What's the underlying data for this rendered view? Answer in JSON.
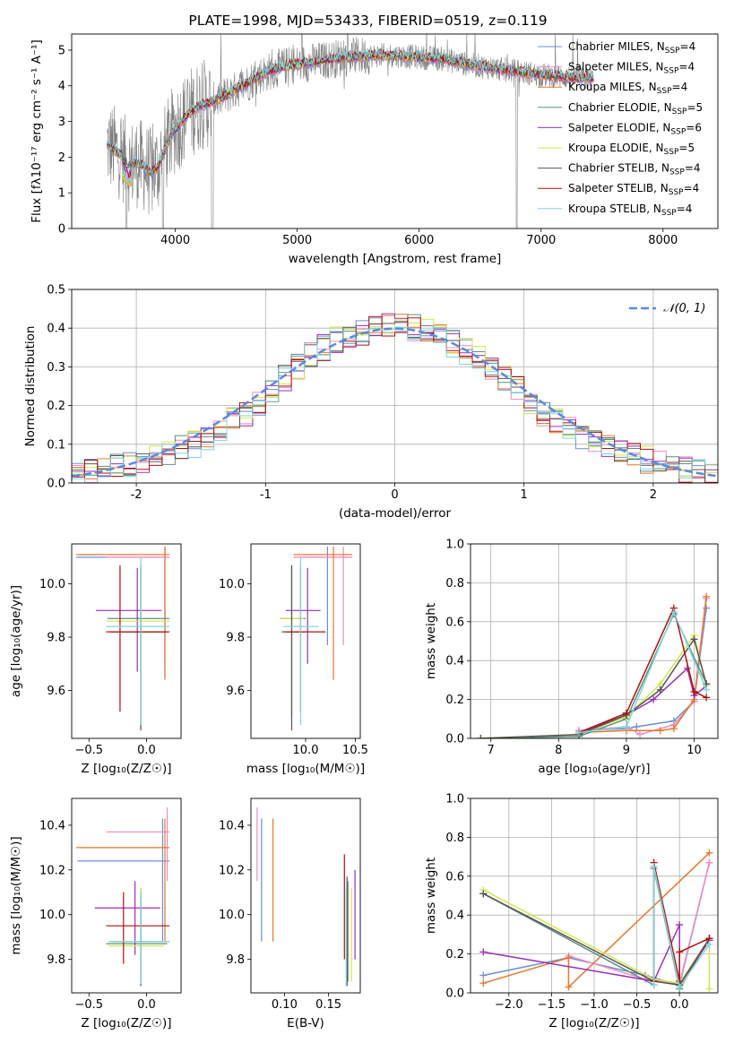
{
  "series_styles": [
    {
      "label": "Chabrier MILES",
      "nssp": "4",
      "color": "#6a8fd6"
    },
    {
      "label": "Salpeter MILES",
      "nssp": "4",
      "color": "#f08bc0"
    },
    {
      "label": "Kroupa MILES",
      "nssp": "4",
      "color": "#e8772e"
    },
    {
      "label": "Chabrier ELODIE",
      "nssp": "5",
      "color": "#5f8f7f"
    },
    {
      "label": "Salpeter ELODIE",
      "nssp": "6",
      "color": "#9a2fb4"
    },
    {
      "label": "Kroupa ELODIE",
      "nssp": "5",
      "color": "#d4e64a"
    },
    {
      "label": "Chabrier STELIB",
      "nssp": "4",
      "color": "#555555"
    },
    {
      "label": "Salpeter STELIB",
      "nssp": "4",
      "color": "#b01010"
    },
    {
      "label": "Kroupa STELIB",
      "nssp": "4",
      "color": "#7fd6dc"
    }
  ],
  "chart_data": [
    {
      "id": "spectrum",
      "type": "line",
      "title": "PLATE=1998, MJD=53433, FIBERID=0519, z=0.119",
      "xlabel": "wavelength [Angstrom, rest frame]",
      "ylabel": "Flux [fλ10⁻¹⁷ erg cm⁻² s⁻¹ A⁻¹]",
      "xlim": [
        3150,
        8450
      ],
      "ylim": [
        0,
        5.45
      ],
      "xticks": [
        4000,
        5000,
        6000,
        7000,
        8000
      ],
      "yticks": [
        0,
        1,
        2,
        3,
        4,
        5
      ],
      "grid": false,
      "legend_position": "top-right",
      "data_color": "#808080",
      "model_x": [
        3440,
        3500,
        3560,
        3620,
        3680,
        3740,
        3800,
        3860,
        3920,
        3980,
        4040,
        4100,
        4200,
        4300,
        4400,
        4500,
        4600,
        4700,
        4800,
        4900,
        5000,
        5200,
        5400,
        5600,
        5800,
        6000,
        6200,
        6400,
        6600,
        6800,
        7000,
        7200,
        7400
      ],
      "model_y": [
        2.35,
        2.2,
        2.05,
        1.75,
        1.85,
        1.75,
        1.55,
        1.75,
        2.25,
        2.7,
        2.95,
        3.2,
        3.45,
        3.55,
        3.7,
        3.9,
        4.1,
        4.3,
        4.45,
        4.55,
        4.6,
        4.7,
        4.8,
        4.85,
        4.85,
        4.8,
        4.75,
        4.6,
        4.5,
        4.4,
        4.3,
        4.25,
        4.2
      ]
    },
    {
      "id": "residuals",
      "type": "step",
      "xlabel": "(data-model)/error",
      "ylabel": "Normed distribution",
      "xlim": [
        -2.5,
        2.5
      ],
      "ylim": [
        0,
        0.5
      ],
      "xticks": [
        -2,
        -1,
        0,
        1,
        2
      ],
      "yticks": [
        0.0,
        0.1,
        0.2,
        0.3,
        0.4,
        0.5
      ],
      "grid": true,
      "legend_position": "top-right",
      "gauss_label": "𝒩(0, 1)",
      "gauss_color": "#5b8ad9",
      "bin_edges": [
        -2.5,
        -2.4,
        -2.3,
        -2.2,
        -2.1,
        -2.0,
        -1.9,
        -1.8,
        -1.7,
        -1.6,
        -1.5,
        -1.4,
        -1.3,
        -1.2,
        -1.1,
        -1.0,
        -0.9,
        -0.8,
        -0.7,
        -0.6,
        -0.5,
        -0.4,
        -0.3,
        -0.2,
        -0.1,
        0.0,
        0.1,
        0.2,
        0.3,
        0.4,
        0.5,
        0.6,
        0.7,
        0.8,
        0.9,
        1.0,
        1.1,
        1.2,
        1.3,
        1.4,
        1.5,
        1.6,
        1.7,
        1.8,
        1.9,
        2.0,
        2.1,
        2.2,
        2.3,
        2.4,
        2.5
      ],
      "hist_base": [
        0.02,
        0.03,
        0.04,
        0.05,
        0.05,
        0.06,
        0.07,
        0.08,
        0.09,
        0.1,
        0.12,
        0.14,
        0.16,
        0.18,
        0.21,
        0.24,
        0.27,
        0.3,
        0.33,
        0.35,
        0.37,
        0.38,
        0.39,
        0.4,
        0.41,
        0.41,
        0.4,
        0.39,
        0.38,
        0.36,
        0.34,
        0.32,
        0.3,
        0.27,
        0.24,
        0.21,
        0.18,
        0.16,
        0.14,
        0.12,
        0.1,
        0.09,
        0.08,
        0.07,
        0.06,
        0.05,
        0.04,
        0.035,
        0.03,
        0.025
      ]
    },
    {
      "id": "age-vs-z",
      "type": "errorbar",
      "xlabel": "Z [log₁₀(Z/Z☉)]",
      "ylabel": "age  [log₁₀(age/yr)]",
      "xlim": [
        -0.65,
        0.3
      ],
      "ylim": [
        9.42,
        10.15
      ],
      "xticks": [
        -0.5,
        0.0
      ],
      "xticklabels": [
        "−0.5",
        "0.0"
      ],
      "yticks": [
        9.6,
        9.8,
        10.0
      ],
      "yticklabels": [
        "9.6",
        "9.8",
        "10.0"
      ],
      "points": [
        {
          "x": 0.16,
          "y": 10.1,
          "xlo": -0.61,
          "xhi": 0.2,
          "ylo": 9.65,
          "yhi": 10.14
        },
        {
          "x": 0.16,
          "y": 10.1,
          "xlo": -0.35,
          "xhi": 0.2,
          "ylo": 9.7,
          "yhi": 10.14
        },
        {
          "x": 0.16,
          "y": 10.11,
          "xlo": -0.61,
          "xhi": 0.2,
          "ylo": 9.64,
          "yhi": 10.14
        },
        {
          "x": -0.05,
          "y": 9.87,
          "xlo": -0.34,
          "xhi": 0.2,
          "ylo": 9.47,
          "yhi": 10.07
        },
        {
          "x": -0.08,
          "y": 9.9,
          "xlo": -0.44,
          "xhi": 0.13,
          "ylo": 9.67,
          "yhi": 10.06
        },
        {
          "x": -0.05,
          "y": 9.86,
          "xlo": -0.35,
          "xhi": 0.2,
          "ylo": 9.46,
          "yhi": 10.07
        },
        {
          "x": -0.05,
          "y": 9.82,
          "xlo": -0.31,
          "xhi": 0.18,
          "ylo": 9.45,
          "yhi": 10.07
        },
        {
          "x": -0.23,
          "y": 9.82,
          "xlo": -0.35,
          "xhi": 0.2,
          "ylo": 9.52,
          "yhi": 10.07
        },
        {
          "x": -0.05,
          "y": 9.84,
          "xlo": -0.35,
          "xhi": 0.2,
          "ylo": 9.47,
          "yhi": 10.1
        }
      ]
    },
    {
      "id": "age-vs-mass",
      "type": "errorbar",
      "xlabel": "mass [log₁₀(M/M☉)]",
      "ylabel": "",
      "xlim": [
        9.45,
        10.55
      ],
      "ylim": [
        9.42,
        10.15
      ],
      "xticks": [
        10.0,
        10.5
      ],
      "xticklabels": [
        "10.0",
        "10.5"
      ],
      "yticks": [
        9.6,
        9.8,
        10.0
      ],
      "yticklabels": [
        "9.6",
        "9.8",
        "10.0"
      ],
      "points": [
        {
          "x": 10.22,
          "y": 10.1,
          "xlo": 9.88,
          "xhi": 10.47,
          "ylo": 9.77,
          "yhi": 10.14
        },
        {
          "x": 10.38,
          "y": 10.1,
          "xlo": 9.88,
          "xhi": 10.47,
          "ylo": 9.77,
          "yhi": 10.14
        },
        {
          "x": 10.28,
          "y": 10.11,
          "xlo": 9.88,
          "xhi": 10.47,
          "ylo": 9.64,
          "yhi": 10.14
        },
        {
          "x": 9.86,
          "y": 9.87,
          "xlo": 9.75,
          "xhi": 10.0,
          "ylo": 9.5,
          "yhi": 10.07
        },
        {
          "x": 10.02,
          "y": 9.9,
          "xlo": 9.8,
          "xhi": 10.15,
          "ylo": 9.7,
          "yhi": 10.06
        },
        {
          "x": 9.86,
          "y": 9.87,
          "xlo": 9.74,
          "xhi": 9.98,
          "ylo": 9.5,
          "yhi": 10.07
        },
        {
          "x": 9.86,
          "y": 9.82,
          "xlo": 9.76,
          "xhi": 10.0,
          "ylo": 9.45,
          "yhi": 10.07
        },
        {
          "x": 9.95,
          "y": 9.82,
          "xlo": 9.8,
          "xhi": 10.2,
          "ylo": 9.52,
          "yhi": 10.07
        },
        {
          "x": 9.95,
          "y": 9.84,
          "xlo": 9.78,
          "xhi": 10.13,
          "ylo": 9.47,
          "yhi": 10.1
        }
      ]
    },
    {
      "id": "mass-weight-vs-age",
      "type": "line",
      "xlabel": "age  [log₁₀(age/yr)]",
      "ylabel": "mass weight",
      "xlim": [
        6.7,
        10.35
      ],
      "ylim": [
        0,
        1.0
      ],
      "xticks": [
        7,
        8,
        9,
        10
      ],
      "xticklabels": [
        "7",
        "8",
        "9",
        "10"
      ],
      "yticks": [
        0.0,
        0.2,
        0.4,
        0.6,
        0.8,
        1.0
      ],
      "yticklabels": [
        "0.0",
        "0.2",
        "0.4",
        "0.6",
        "0.8",
        "1.0"
      ],
      "grid": true,
      "series": [
        {
          "x": [
            8.3,
            9.0,
            9.15,
            9.7,
            10.0,
            10.18
          ],
          "y": [
            0.04,
            0.05,
            0.06,
            0.09,
            0.19,
            0.67
          ]
        },
        {
          "x": [
            8.3,
            9.0,
            9.2,
            9.7,
            10.0,
            10.18
          ],
          "y": [
            0.04,
            0.06,
            0.02,
            0.07,
            0.19,
            0.72
          ]
        },
        {
          "x": [
            8.3,
            9.0,
            9.5,
            9.7,
            10.0,
            10.18
          ],
          "y": [
            0.03,
            0.04,
            0.04,
            0.05,
            0.2,
            0.73
          ]
        },
        {
          "x": [
            6.85,
            8.3,
            9.0,
            9.7,
            10.18
          ],
          "y": [
            0.0,
            0.01,
            0.1,
            0.64,
            0.28
          ]
        },
        {
          "x": [
            8.3,
            9.0,
            9.4,
            9.9,
            10.0,
            10.18
          ],
          "y": [
            0.03,
            0.12,
            0.2,
            0.36,
            0.22,
            0.27
          ]
        },
        {
          "x": [
            6.85,
            8.3,
            9.0,
            9.5,
            10.0,
            10.18
          ],
          "y": [
            0.0,
            0.02,
            0.11,
            0.28,
            0.53,
            0.27
          ]
        },
        {
          "x": [
            6.85,
            8.3,
            9.0,
            9.5,
            10.0,
            10.18
          ],
          "y": [
            0.0,
            0.02,
            0.12,
            0.25,
            0.51,
            0.28
          ]
        },
        {
          "x": [
            8.3,
            9.0,
            9.7,
            10.0,
            10.18
          ],
          "y": [
            0.03,
            0.13,
            0.67,
            0.24,
            0.21
          ]
        },
        {
          "x": [
            8.3,
            9.0,
            9.7,
            10.18
          ],
          "y": [
            0.03,
            0.06,
            0.65,
            0.25
          ]
        }
      ]
    },
    {
      "id": "mass-vs-z",
      "type": "errorbar",
      "xlabel": "Z [log₁₀(Z/Z☉)]",
      "ylabel": "mass [log₁₀(M/M☉)]",
      "xlim": [
        -0.65,
        0.3
      ],
      "ylim": [
        9.65,
        10.52
      ],
      "xticks": [
        -0.5,
        0.0
      ],
      "xticklabels": [
        "−0.5",
        "0.0"
      ],
      "yticks": [
        9.8,
        10.0,
        10.2,
        10.4
      ],
      "yticklabels": [
        "9.8",
        "10.0",
        "10.2",
        "10.4"
      ],
      "points": [
        {
          "x": 0.14,
          "y": 10.24,
          "xlo": -0.6,
          "xhi": 0.2,
          "ylo": 9.88,
          "yhi": 10.43
        },
        {
          "x": 0.18,
          "y": 10.37,
          "xlo": -0.35,
          "xhi": 0.2,
          "ylo": 10.15,
          "yhi": 10.48
        },
        {
          "x": 0.16,
          "y": 10.3,
          "xlo": -0.61,
          "xhi": 0.2,
          "ylo": 9.88,
          "yhi": 10.43
        },
        {
          "x": -0.05,
          "y": 9.87,
          "xlo": -0.35,
          "xhi": 0.18,
          "ylo": 9.7,
          "yhi": 10.12
        },
        {
          "x": -0.1,
          "y": 10.03,
          "xlo": -0.45,
          "xhi": 0.12,
          "ylo": 9.82,
          "yhi": 10.15
        },
        {
          "x": -0.05,
          "y": 9.86,
          "xlo": -0.33,
          "xhi": 0.15,
          "ylo": 9.7,
          "yhi": 10.12
        },
        {
          "x": -0.05,
          "y": 9.88,
          "xlo": -0.3,
          "xhi": 0.2,
          "ylo": 9.68,
          "yhi": 10.1
        },
        {
          "x": -0.2,
          "y": 9.95,
          "xlo": -0.35,
          "xhi": 0.2,
          "ylo": 9.78,
          "yhi": 10.1
        },
        {
          "x": -0.05,
          "y": 9.88,
          "xlo": -0.33,
          "xhi": 0.2,
          "ylo": 9.69,
          "yhi": 10.1
        }
      ]
    },
    {
      "id": "mass-vs-ebv",
      "type": "errorbar",
      "xlabel": "E(B-V)",
      "ylabel": "",
      "xlim": [
        0.062,
        0.186
      ],
      "ylim": [
        9.65,
        10.52
      ],
      "xticks": [
        0.1,
        0.15
      ],
      "xticklabels": [
        "0.10",
        "0.15"
      ],
      "yticks": [
        9.8,
        10.0,
        10.2,
        10.4
      ],
      "yticklabels": [
        "9.8",
        "10.0",
        "10.2",
        "10.4"
      ],
      "points": [
        {
          "x": 0.074,
          "y": 10.24,
          "ylo": 9.88,
          "yhi": 10.43
        },
        {
          "x": 0.069,
          "y": 10.37,
          "ylo": 10.15,
          "yhi": 10.48
        },
        {
          "x": 0.087,
          "y": 10.3,
          "ylo": 9.88,
          "yhi": 10.43
        },
        {
          "x": 0.172,
          "y": 9.9,
          "ylo": 9.7,
          "yhi": 10.15
        },
        {
          "x": 0.18,
          "y": 10.0,
          "ylo": 9.8,
          "yhi": 10.2
        },
        {
          "x": 0.176,
          "y": 9.9,
          "ylo": 9.7,
          "yhi": 10.12
        },
        {
          "x": 0.171,
          "y": 9.9,
          "ylo": 9.68,
          "yhi": 10.17
        },
        {
          "x": 0.168,
          "y": 10.05,
          "ylo": 9.8,
          "yhi": 10.27
        },
        {
          "x": 0.17,
          "y": 9.9,
          "ylo": 9.68,
          "yhi": 10.12
        }
      ]
    },
    {
      "id": "mass-weight-vs-z",
      "type": "line",
      "xlabel": "Z [log₁₀(Z/Z☉)]",
      "ylabel": "mass weight",
      "xlim": [
        -2.45,
        0.45
      ],
      "ylim": [
        0,
        1.0
      ],
      "xticks": [
        -2.0,
        -1.5,
        -1.0,
        -0.5,
        0.0
      ],
      "xticklabels": [
        "−2.0",
        "−1.5",
        "−1.0",
        "−0.5",
        "0.0"
      ],
      "yticks": [
        0.0,
        0.2,
        0.4,
        0.6,
        0.8,
        1.0
      ],
      "yticklabels": [
        "0.0",
        "0.2",
        "0.4",
        "0.6",
        "0.8",
        "1.0"
      ],
      "grid": true,
      "series": [
        {
          "x": [
            -2.3,
            -1.3,
            -0.4,
            0.0,
            0.35
          ],
          "y": [
            0.09,
            0.18,
            0.09,
            0.04,
            0.67
          ]
        },
        {
          "x": [
            -1.3,
            -0.4,
            0.0,
            0.35
          ],
          "y": [
            0.19,
            0.07,
            0.05,
            0.67
          ]
        },
        {
          "x": [
            -2.3,
            -1.3,
            -1.3,
            0.35
          ],
          "y": [
            0.05,
            0.18,
            0.03,
            0.72
          ]
        },
        {
          "x": [
            -2.3,
            -0.3,
            -0.3,
            0.0,
            0.35
          ],
          "y": [
            0.51,
            0.04,
            0.64,
            0.02,
            0.28
          ]
        },
        {
          "x": [
            -2.3,
            -0.3,
            0.0,
            0.0,
            0.35
          ],
          "y": [
            0.21,
            0.06,
            0.35,
            0.04,
            0.27
          ]
        },
        {
          "x": [
            -2.3,
            -0.3,
            0.0,
            0.35,
            0.35
          ],
          "y": [
            0.53,
            0.07,
            0.05,
            0.28,
            0.02
          ]
        },
        {
          "x": [
            -2.3,
            -0.3,
            0.0,
            0.35
          ],
          "y": [
            0.51,
            0.06,
            0.04,
            0.28
          ]
        },
        {
          "x": [
            -0.3,
            -0.3,
            0.0,
            0.0,
            0.35
          ],
          "y": [
            0.06,
            0.67,
            0.06,
            0.21,
            0.28
          ]
        },
        {
          "x": [
            -0.3,
            -0.3,
            0.0,
            0.35
          ],
          "y": [
            0.04,
            0.65,
            0.03,
            0.25
          ]
        }
      ]
    }
  ]
}
